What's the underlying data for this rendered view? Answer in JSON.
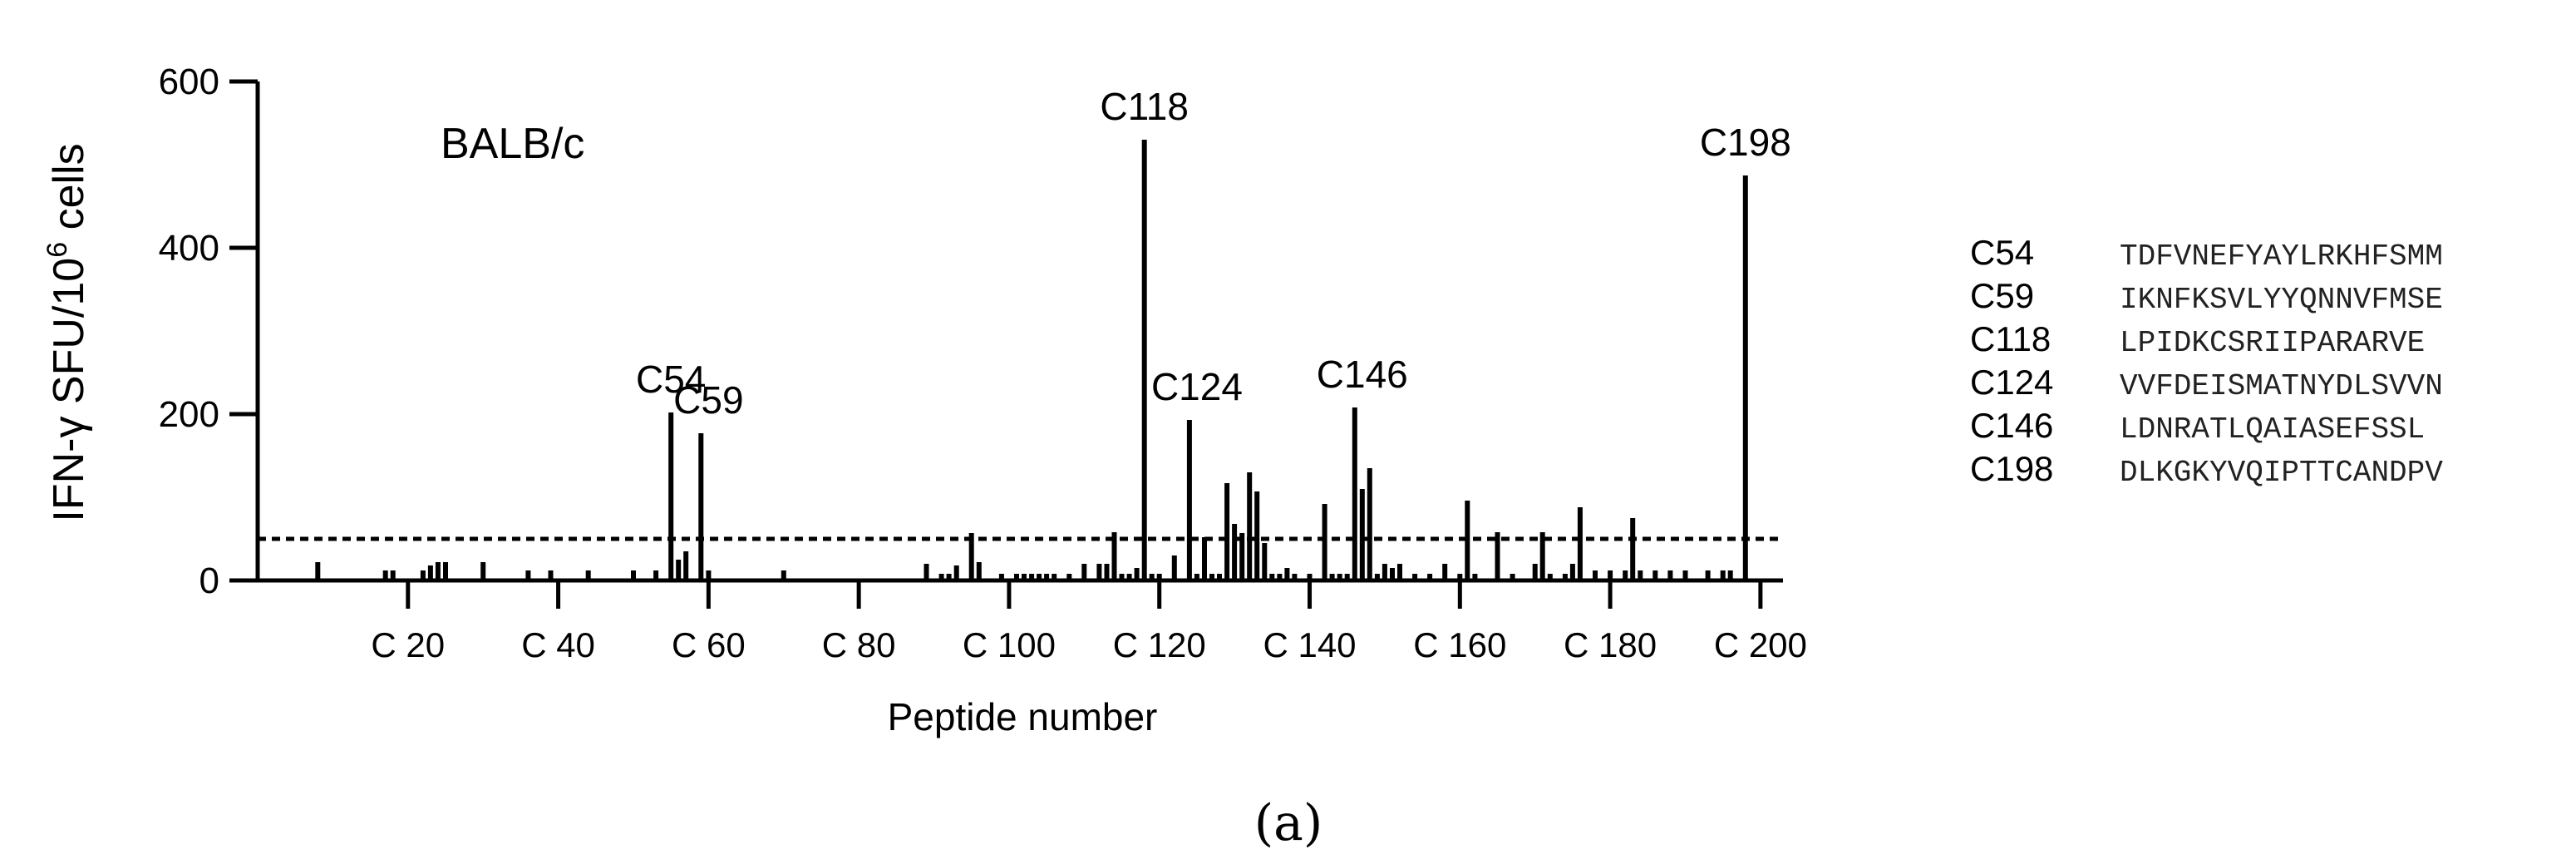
{
  "chart_data": {
    "type": "bar",
    "panel_label": "(a)",
    "strain_label": "BALB/c",
    "xlabel": "Peptide number",
    "ylabel_main": "IFN-γ SFU/10",
    "ylabel_sup": "6",
    "ylabel_tail": " cells",
    "ylim": [
      0,
      600
    ],
    "xlim": [
      0,
      203
    ],
    "y_ticks": [
      {
        "value": 0,
        "label": "0"
      },
      {
        "value": 200,
        "label": "200"
      },
      {
        "value": 400,
        "label": "400"
      },
      {
        "value": 600,
        "label": "600"
      }
    ],
    "x_ticks": [
      {
        "value": 20,
        "label": "C 20"
      },
      {
        "value": 40,
        "label": "C 40"
      },
      {
        "value": 60,
        "label": "C 60"
      },
      {
        "value": 80,
        "label": "C 80"
      },
      {
        "value": 100,
        "label": "C 100"
      },
      {
        "value": 120,
        "label": "C 120"
      },
      {
        "value": 140,
        "label": "C 140"
      },
      {
        "value": 160,
        "label": "C 160"
      },
      {
        "value": 180,
        "label": "C 180"
      },
      {
        "value": 200,
        "label": "C 200"
      }
    ],
    "threshold": 50,
    "grid": false,
    "x": [
      8,
      17,
      18,
      22,
      23,
      24,
      25,
      30,
      36,
      39,
      44,
      50,
      53,
      55,
      56,
      57,
      59,
      60,
      70,
      89,
      91,
      92,
      93,
      95,
      96,
      99,
      101,
      102,
      103,
      104,
      105,
      106,
      108,
      110,
      112,
      113,
      114,
      115,
      116,
      117,
      118,
      119,
      120,
      122,
      124,
      125,
      126,
      127,
      128,
      129,
      130,
      131,
      132,
      133,
      134,
      135,
      136,
      137,
      138,
      140,
      142,
      143,
      144,
      145,
      146,
      147,
      148,
      149,
      150,
      151,
      152,
      154,
      156,
      158,
      160,
      161,
      162,
      165,
      167,
      170,
      171,
      172,
      174,
      175,
      176,
      178,
      180,
      182,
      183,
      184,
      186,
      188,
      190,
      193,
      195,
      196,
      198
    ],
    "values": [
      22,
      12,
      12,
      12,
      18,
      22,
      22,
      22,
      12,
      12,
      12,
      12,
      12,
      202,
      25,
      35,
      177,
      12,
      12,
      20,
      8,
      8,
      18,
      57,
      22,
      8,
      8,
      8,
      8,
      8,
      8,
      8,
      8,
      20,
      20,
      20,
      58,
      8,
      8,
      15,
      530,
      8,
      8,
      30,
      193,
      8,
      52,
      8,
      8,
      117,
      68,
      57,
      130,
      107,
      45,
      8,
      8,
      15,
      8,
      8,
      92,
      8,
      8,
      8,
      208,
      110,
      135,
      8,
      20,
      15,
      20,
      8,
      8,
      20,
      8,
      96,
      8,
      58,
      8,
      20,
      58,
      8,
      8,
      20,
      88,
      12,
      12,
      12,
      75,
      12,
      12,
      12,
      12,
      12,
      12,
      12,
      487
    ],
    "annotations": [
      {
        "x": 55,
        "y": 202,
        "label": "C54"
      },
      {
        "x": 60,
        "y": 177,
        "label": "C59"
      },
      {
        "x": 118,
        "y": 530,
        "label": "C118"
      },
      {
        "x": 125,
        "y": 193,
        "label": "C124"
      },
      {
        "x": 147,
        "y": 208,
        "label": "C146"
      },
      {
        "x": 198,
        "y": 487,
        "label": "C198"
      }
    ]
  },
  "peptide_table": [
    {
      "id": "C54",
      "sequence": "TDFVNEFYAYLRKHFSMM"
    },
    {
      "id": "C59",
      "sequence": "IKNFKSVLYYQNNVFMSE"
    },
    {
      "id": "C118",
      "sequence": "LPIDKCSRIIPARARVE"
    },
    {
      "id": "C124",
      "sequence": "VVFDEISMATNYDLSVVN"
    },
    {
      "id": "C146",
      "sequence": "LDNRATLQAIASEFSSL"
    },
    {
      "id": "C198",
      "sequence": "DLKGKYVQIPTTCANDPV"
    }
  ]
}
